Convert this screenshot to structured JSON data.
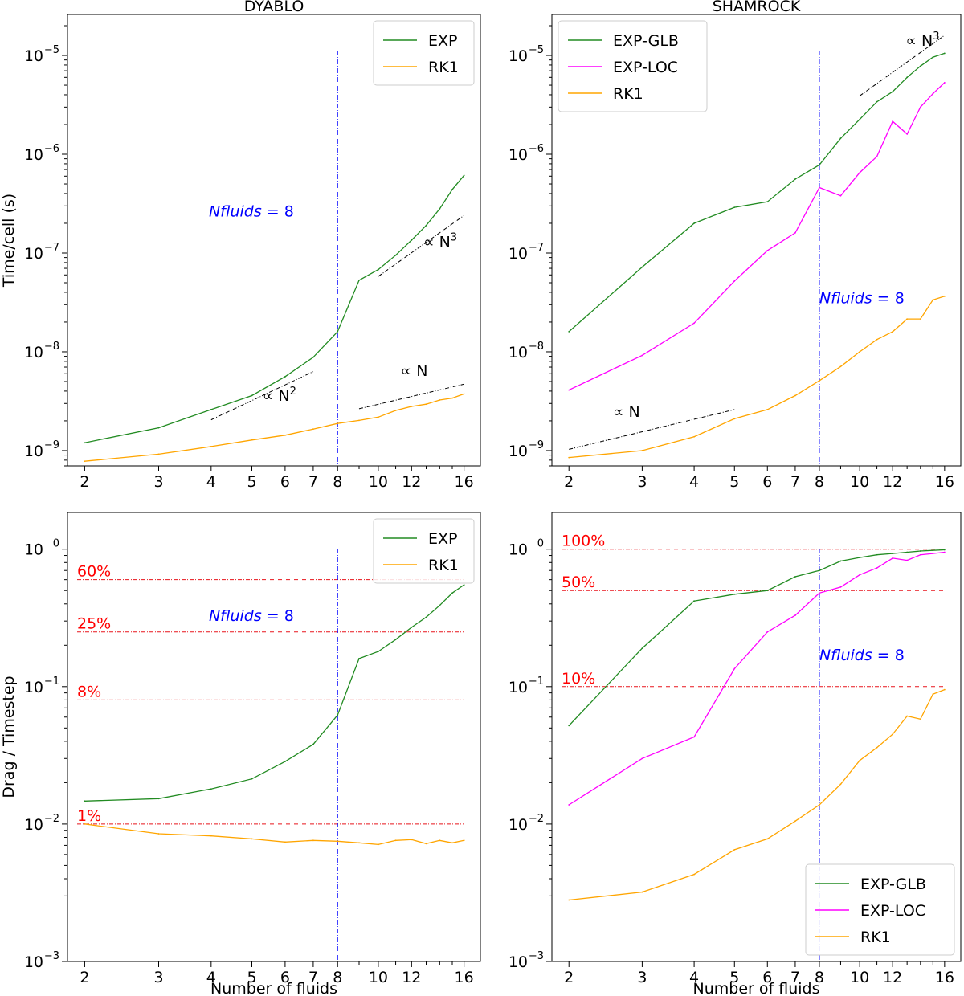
{
  "chart_data": [
    {
      "id": "p1",
      "type": "line",
      "title": "DYABLO",
      "ylabel": "Time/cell (s)",
      "xlabel": "",
      "xscale": "log",
      "yscale": "log",
      "xlim": [
        1.82,
        17.5
      ],
      "ylim": [
        7e-10,
        2.6e-05
      ],
      "xticks": [
        {
          "v": 2,
          "label": "2"
        },
        {
          "v": 3,
          "label": "3"
        },
        {
          "v": 4,
          "label": "4"
        },
        {
          "v": 5,
          "label": "5"
        },
        {
          "v": 6,
          "label": "6"
        },
        {
          "v": 7,
          "label": "7"
        },
        {
          "v": 8,
          "label": "8"
        },
        {
          "v": 10,
          "label": "10"
        },
        {
          "v": 12,
          "label": "12"
        },
        {
          "v": 16,
          "label": "16"
        }
      ],
      "minor_xticks": [
        9,
        11,
        13,
        14,
        15
      ],
      "yticks": [
        {
          "v": 1e-09,
          "base": "10",
          "exp": "−9"
        },
        {
          "v": 1e-08,
          "base": "10",
          "exp": "−8"
        },
        {
          "v": 1e-07,
          "base": "10",
          "exp": "−7"
        },
        {
          "v": 1e-06,
          "base": "10",
          "exp": "−6"
        },
        {
          "v": 1e-05,
          "base": "10",
          "exp": "−5"
        }
      ],
      "series": [
        {
          "name": "EXP",
          "color": "#228B22",
          "x": [
            2,
            3,
            4,
            5,
            6,
            7,
            8,
            9,
            10,
            11,
            12,
            13,
            14,
            15,
            16
          ],
          "y": [
            1.2e-09,
            1.7e-09,
            2.6e-09,
            3.6e-09,
            5.6e-09,
            8.8e-09,
            1.6e-08,
            5.3e-08,
            6.8e-08,
            9.5e-08,
            1.35e-07,
            1.9e-07,
            2.8e-07,
            4.4e-07,
            6.1e-07
          ]
        },
        {
          "name": "RK1",
          "color": "#FFA500",
          "x": [
            2,
            3,
            4,
            5,
            6,
            7,
            8,
            9,
            10,
            11,
            12,
            13,
            14,
            15,
            16
          ],
          "y": [
            7.8e-10,
            9.2e-10,
            1.1e-09,
            1.28e-09,
            1.43e-09,
            1.65e-09,
            1.88e-09,
            2.02e-09,
            2.18e-09,
            2.55e-09,
            2.8e-09,
            2.95e-09,
            3.25e-09,
            3.4e-09,
            3.75e-09
          ]
        }
      ],
      "guides": [
        {
          "x": [
            4,
            7
          ],
          "y": [
            2.05e-09,
            6.3e-09
          ],
          "color": "#000000",
          "label": {
            "text": "∝ N",
            "sup": "2",
            "x": 5.3,
            "y": 3.2e-09
          }
        },
        {
          "x": [
            9,
            16
          ],
          "y": [
            2.65e-09,
            4.7e-09
          ],
          "color": "#000000",
          "label": {
            "text": "∝ N",
            "sup": "",
            "x": 11.3,
            "y": 5.7e-09
          }
        },
        {
          "x": [
            10,
            16
          ],
          "y": [
            5.8e-08,
            2.4e-07
          ],
          "color": "#000000",
          "label": {
            "text": "∝ N",
            "sup": "3",
            "x": 12.8,
            "y": 1.15e-07
          }
        }
      ],
      "vline": {
        "x": 8,
        "color": "#0000FF"
      },
      "vline_label": {
        "text": "Nfluids",
        "eq": " = 8",
        "x": 3.95,
        "y": 2.35e-07
      },
      "legend": {
        "position": "top-right"
      }
    },
    {
      "id": "p2",
      "type": "line",
      "title": "SHAMROCK",
      "ylabel": "",
      "xlabel": "",
      "xscale": "log",
      "yscale": "log",
      "xlim": [
        1.82,
        17.5
      ],
      "ylim": [
        7e-10,
        2.6e-05
      ],
      "xticks": [
        {
          "v": 2,
          "label": "2"
        },
        {
          "v": 3,
          "label": "3"
        },
        {
          "v": 4,
          "label": "4"
        },
        {
          "v": 5,
          "label": "5"
        },
        {
          "v": 6,
          "label": "6"
        },
        {
          "v": 7,
          "label": "7"
        },
        {
          "v": 8,
          "label": "8"
        },
        {
          "v": 10,
          "label": "10"
        },
        {
          "v": 12,
          "label": "12"
        },
        {
          "v": 16,
          "label": "16"
        }
      ],
      "minor_xticks": [
        9,
        11,
        13,
        14,
        15
      ],
      "yticks": [
        {
          "v": 1e-09,
          "base": "10",
          "exp": "−9"
        },
        {
          "v": 1e-08,
          "base": "10",
          "exp": "−8"
        },
        {
          "v": 1e-07,
          "base": "10",
          "exp": "−7"
        },
        {
          "v": 1e-06,
          "base": "10",
          "exp": "−6"
        },
        {
          "v": 1e-05,
          "base": "10",
          "exp": "−5"
        }
      ],
      "series": [
        {
          "name": "EXP-GLB",
          "color": "#228B22",
          "x": [
            2,
            3,
            4,
            5,
            6,
            7,
            8,
            9,
            10,
            11,
            12,
            13,
            14,
            15,
            16
          ],
          "y": [
            1.6e-08,
            7.2e-08,
            2e-07,
            2.9e-07,
            3.3e-07,
            5.6e-07,
            7.8e-07,
            1.45e-06,
            2.25e-06,
            3.4e-06,
            4.3e-06,
            6e-06,
            7.8e-06,
            9.6e-06,
            1.05e-05
          ]
        },
        {
          "name": "EXP-LOC",
          "color": "#FF00FF",
          "x": [
            2,
            3,
            4,
            5,
            6,
            7,
            8,
            9,
            10,
            11,
            12,
            13,
            14,
            15,
            16
          ],
          "y": [
            4.1e-09,
            9.2e-09,
            1.95e-08,
            5.2e-08,
            1.06e-07,
            1.6e-07,
            4.6e-07,
            3.8e-07,
            6.5e-07,
            9.5e-07,
            2.15e-06,
            1.6e-06,
            3e-06,
            4.1e-06,
            5.3e-06
          ]
        },
        {
          "name": "RK1",
          "color": "#FFA500",
          "x": [
            2,
            3,
            4,
            5,
            6,
            7,
            8,
            9,
            10,
            11,
            12,
            13,
            14,
            15,
            16
          ],
          "y": [
            8.5e-10,
            1e-09,
            1.38e-09,
            2.1e-09,
            2.6e-09,
            3.6e-09,
            5.1e-09,
            7.1e-09,
            1e-08,
            1.33e-08,
            1.6e-08,
            2.15e-08,
            2.15e-08,
            3.35e-08,
            3.65e-08
          ]
        }
      ],
      "guides": [
        {
          "x": [
            2,
            5
          ],
          "y": [
            1.03e-09,
            2.6e-09
          ],
          "color": "#000000",
          "label": {
            "text": "∝ N",
            "sup": "",
            "x": 2.55,
            "y": 2.2e-09
          }
        },
        {
          "x": [
            10,
            16
          ],
          "y": [
            3.9e-06,
            1.6e-05
          ],
          "color": "#000000",
          "label": {
            "text": "∝ N",
            "sup": "3",
            "x": 12.9,
            "y": 1.25e-05
          }
        }
      ],
      "vline": {
        "x": 8,
        "color": "#0000FF"
      },
      "vline_label": {
        "text": "Nfluids",
        "eq": " = 8",
        "x": 8.0,
        "y": 3.1e-08
      },
      "legend": {
        "position": "top-left"
      }
    },
    {
      "id": "p3",
      "type": "line",
      "title": "",
      "ylabel": "Drag / Timestep",
      "xlabel": "Number of fluids",
      "xscale": "log",
      "yscale": "log",
      "xlim": [
        1.82,
        17.5
      ],
      "ylim": [
        0.001,
        1.85
      ],
      "xticks": [
        {
          "v": 2,
          "label": "2"
        },
        {
          "v": 3,
          "label": "3"
        },
        {
          "v": 4,
          "label": "4"
        },
        {
          "v": 5,
          "label": "5"
        },
        {
          "v": 6,
          "label": "6"
        },
        {
          "v": 7,
          "label": "7"
        },
        {
          "v": 8,
          "label": "8"
        },
        {
          "v": 10,
          "label": "10"
        },
        {
          "v": 12,
          "label": "12"
        },
        {
          "v": 16,
          "label": "16"
        }
      ],
      "minor_xticks": [
        9,
        11,
        13,
        14,
        15
      ],
      "yticks": [
        {
          "v": 0.001,
          "base": "10",
          "exp": "−3"
        },
        {
          "v": 0.01,
          "base": "10",
          "exp": "−2"
        },
        {
          "v": 0.1,
          "base": "10",
          "exp": "−1"
        },
        {
          "v": 1,
          "base": "10",
          "exp": "0"
        }
      ],
      "series": [
        {
          "name": "EXP",
          "color": "#228B22",
          "x": [
            2,
            3,
            4,
            5,
            6,
            7,
            8,
            9,
            10,
            11,
            12,
            13,
            14,
            15,
            16
          ],
          "y": [
            0.0147,
            0.0153,
            0.018,
            0.0213,
            0.0285,
            0.038,
            0.062,
            0.16,
            0.18,
            0.22,
            0.27,
            0.32,
            0.39,
            0.48,
            0.55
          ]
        },
        {
          "name": "RK1",
          "color": "#FFA500",
          "x": [
            2,
            3,
            4,
            5,
            6,
            7,
            8,
            9,
            10,
            11,
            12,
            13,
            14,
            15,
            16
          ],
          "y": [
            0.01,
            0.0085,
            0.0082,
            0.0078,
            0.0074,
            0.0076,
            0.0075,
            0.0073,
            0.0071,
            0.0076,
            0.0077,
            0.0072,
            0.0076,
            0.0073,
            0.0076
          ]
        }
      ],
      "hlines": [
        {
          "y": 0.6,
          "label": "60%"
        },
        {
          "y": 0.25,
          "label": "25%"
        },
        {
          "y": 0.08,
          "label": "8%"
        },
        {
          "y": 0.01,
          "label": "1%"
        }
      ],
      "guides": [],
      "vline": {
        "x": 8,
        "color": "#0000FF"
      },
      "vline_label": {
        "text": "Nfluids",
        "eq": " = 8",
        "x": 3.95,
        "y": 0.3
      },
      "legend": {
        "position": "top-right"
      }
    },
    {
      "id": "p4",
      "type": "line",
      "title": "",
      "ylabel": "",
      "xlabel": "Number of fluids",
      "xscale": "log",
      "yscale": "log",
      "xlim": [
        1.82,
        17.5
      ],
      "ylim": [
        0.001,
        1.85
      ],
      "xticks": [
        {
          "v": 2,
          "label": "2"
        },
        {
          "v": 3,
          "label": "3"
        },
        {
          "v": 4,
          "label": "4"
        },
        {
          "v": 5,
          "label": "5"
        },
        {
          "v": 6,
          "label": "6"
        },
        {
          "v": 7,
          "label": "7"
        },
        {
          "v": 8,
          "label": "8"
        },
        {
          "v": 10,
          "label": "10"
        },
        {
          "v": 12,
          "label": "12"
        },
        {
          "v": 16,
          "label": "16"
        }
      ],
      "minor_xticks": [
        9,
        11,
        13,
        14,
        15
      ],
      "yticks": [
        {
          "v": 0.001,
          "base": "10",
          "exp": "−3"
        },
        {
          "v": 0.01,
          "base": "10",
          "exp": "−2"
        },
        {
          "v": 0.1,
          "base": "10",
          "exp": "−1"
        },
        {
          "v": 1,
          "base": "10",
          "exp": "0"
        }
      ],
      "series": [
        {
          "name": "EXP-GLB",
          "color": "#228B22",
          "x": [
            2,
            3,
            4,
            5,
            6,
            7,
            8,
            9,
            10,
            11,
            12,
            13,
            14,
            15,
            16
          ],
          "y": [
            0.052,
            0.19,
            0.42,
            0.47,
            0.5,
            0.63,
            0.7,
            0.82,
            0.87,
            0.91,
            0.93,
            0.95,
            0.97,
            0.98,
            0.99
          ]
        },
        {
          "name": "EXP-LOC",
          "color": "#FF00FF",
          "x": [
            2,
            3,
            4,
            5,
            6,
            7,
            8,
            9,
            10,
            11,
            12,
            13,
            14,
            15,
            16
          ],
          "y": [
            0.0138,
            0.03,
            0.043,
            0.135,
            0.25,
            0.33,
            0.48,
            0.53,
            0.65,
            0.73,
            0.86,
            0.83,
            0.91,
            0.93,
            0.95
          ]
        },
        {
          "name": "RK1",
          "color": "#FFA500",
          "x": [
            2,
            3,
            4,
            5,
            6,
            7,
            8,
            9,
            10,
            11,
            12,
            13,
            14,
            15,
            16
          ],
          "y": [
            0.0028,
            0.0032,
            0.0043,
            0.0065,
            0.0078,
            0.0105,
            0.0138,
            0.0195,
            0.029,
            0.036,
            0.045,
            0.061,
            0.058,
            0.088,
            0.095
          ]
        }
      ],
      "hlines": [
        {
          "y": 1.0,
          "label": "100%"
        },
        {
          "y": 0.5,
          "label": "50%"
        },
        {
          "y": 0.1,
          "label": "10%"
        }
      ],
      "guides": [],
      "vline": {
        "x": 8,
        "color": "#0000FF"
      },
      "vline_label": {
        "text": "Nfluids",
        "eq": " = 8",
        "x": 8.0,
        "y": 0.155
      },
      "legend": {
        "position": "bottom-right"
      }
    }
  ]
}
